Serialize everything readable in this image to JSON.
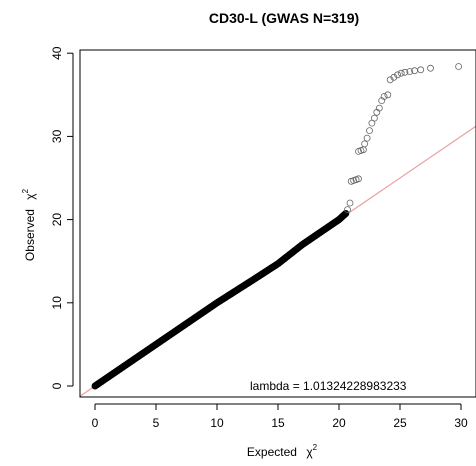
{
  "chart_data": {
    "type": "scatter",
    "title": "CD30-L (GWAS N=319)",
    "xlabel": "Expected",
    "ylabel": "Observed",
    "axis_symbol": "χ",
    "axis_superscript": "2",
    "xlim": [
      0,
      30
    ],
    "ylim": [
      0,
      40
    ],
    "xticks": [
      0,
      5,
      10,
      15,
      20,
      25,
      30
    ],
    "yticks": [
      0,
      10,
      20,
      30,
      40
    ],
    "reference_line": {
      "slope": 1,
      "intercept": 0,
      "color": "#e8a0a0"
    },
    "annotation": "lambda =  1.01324228983233",
    "bulk_segments": [
      [
        0,
        0
      ],
      [
        5,
        5
      ],
      [
        10,
        10
      ],
      [
        13,
        12.8
      ],
      [
        15,
        14.7
      ],
      [
        17,
        17
      ],
      [
        20,
        20
      ],
      [
        20.6,
        20.8
      ]
    ],
    "tail_points": [
      [
        20.7,
        21.2
      ],
      [
        20.9,
        22.0
      ],
      [
        21.0,
        24.6
      ],
      [
        21.2,
        24.7
      ],
      [
        21.4,
        24.8
      ],
      [
        21.6,
        24.9
      ],
      [
        21.6,
        28.2
      ],
      [
        21.8,
        28.3
      ],
      [
        22.0,
        28.4
      ],
      [
        22.1,
        29.1
      ],
      [
        22.3,
        29.8
      ],
      [
        22.5,
        30.7
      ],
      [
        22.7,
        31.6
      ],
      [
        22.9,
        32.2
      ],
      [
        23.1,
        32.9
      ],
      [
        23.3,
        33.4
      ],
      [
        23.5,
        34.3
      ],
      [
        23.7,
        34.8
      ],
      [
        24.0,
        35.0
      ],
      [
        24.2,
        36.8
      ],
      [
        24.5,
        37.1
      ],
      [
        24.8,
        37.4
      ],
      [
        25.1,
        37.6
      ],
      [
        25.4,
        37.7
      ],
      [
        25.8,
        37.8
      ],
      [
        26.2,
        37.9
      ],
      [
        26.7,
        38.0
      ],
      [
        27.5,
        38.2
      ],
      [
        29.8,
        38.4
      ]
    ]
  }
}
